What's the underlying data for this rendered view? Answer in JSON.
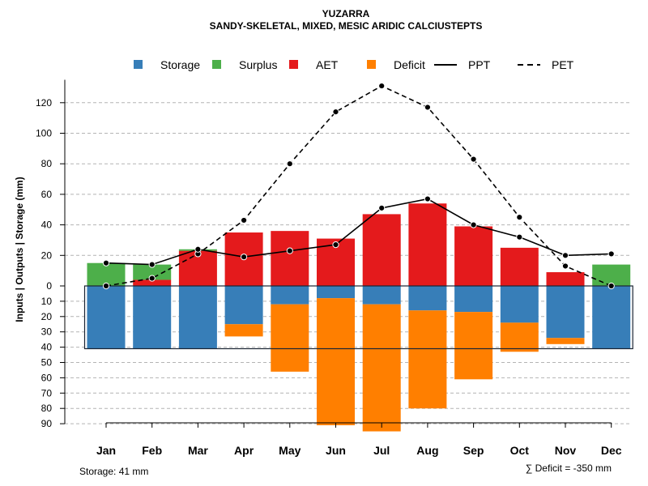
{
  "chart_data": {
    "type": "bar",
    "title": "YUZARRA",
    "subtitle": "SANDY-SKELETAL, MIXED, MESIC ARIDIC CALCIUSTEPTS",
    "ylabel": "Inputs | Outputs | Storage    (mm)",
    "categories": [
      "Jan",
      "Feb",
      "Mar",
      "Apr",
      "May",
      "Jun",
      "Jul",
      "Aug",
      "Sep",
      "Oct",
      "Nov",
      "Dec"
    ],
    "y_ticks_upper": [
      0,
      20,
      40,
      60,
      80,
      100,
      120
    ],
    "y_ticks_lower": [
      10,
      20,
      30,
      40,
      50,
      60,
      70,
      80,
      90
    ],
    "ylim_upper": [
      0,
      135
    ],
    "ylim_lower": [
      0,
      90
    ],
    "legend": [
      {
        "key": "storage",
        "label": "Storage",
        "color": "#377EB8",
        "kind": "box"
      },
      {
        "key": "surplus",
        "label": "Surplus",
        "color": "#4DAF4A",
        "kind": "box"
      },
      {
        "key": "aet",
        "label": "AET",
        "color": "#E41A1C",
        "kind": "box"
      },
      {
        "key": "deficit",
        "label": "Deficit",
        "color": "#FF7F00",
        "kind": "box"
      },
      {
        "key": "ppt",
        "label": "PPT",
        "color": "#000000",
        "kind": "solid"
      },
      {
        "key": "pet",
        "label": "PET",
        "color": "#000000",
        "kind": "dashed"
      }
    ],
    "series": [
      {
        "name": "AET",
        "values": [
          0,
          4,
          23,
          35,
          36,
          31,
          47,
          54,
          39,
          25,
          9,
          0
        ]
      },
      {
        "name": "Surplus",
        "values": [
          15,
          10,
          1,
          0,
          0,
          0,
          0,
          0,
          0,
          0,
          0,
          14
        ]
      },
      {
        "name": "Storage",
        "values": [
          41,
          41,
          41,
          25,
          12,
          8,
          12,
          16,
          17,
          24,
          34,
          41
        ]
      },
      {
        "name": "Deficit",
        "values": [
          0,
          0,
          0,
          8,
          44,
          83,
          83,
          64,
          44,
          19,
          4,
          0
        ]
      },
      {
        "name": "PPT",
        "values": [
          15,
          14,
          24,
          19,
          23,
          27,
          51,
          57,
          40,
          32,
          20,
          21
        ]
      },
      {
        "name": "PET",
        "values": [
          0,
          5,
          21,
          43,
          80,
          114,
          131,
          117,
          83,
          45,
          13,
          0
        ]
      }
    ],
    "storage_capacity": 41,
    "notes": {
      "storage": "Storage: 41 mm",
      "deficit": "∑ Deficit = -350 mm"
    }
  }
}
